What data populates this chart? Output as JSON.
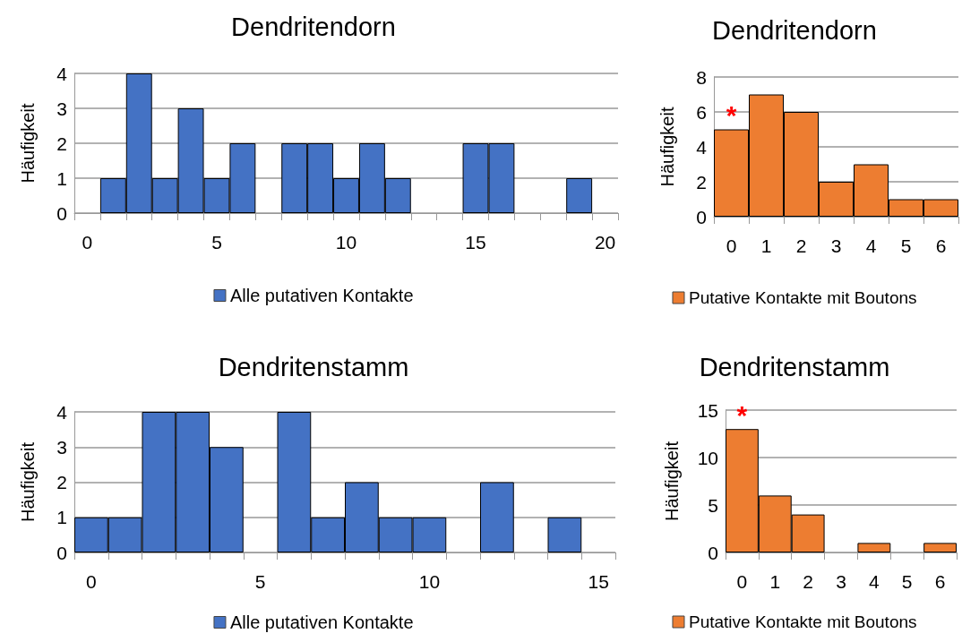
{
  "chart_data": [
    {
      "type": "bar",
      "title": "Dendritendorn",
      "ylabel": "Häufigkeit",
      "categories": [
        "0",
        null,
        null,
        null,
        null,
        "5",
        null,
        null,
        null,
        null,
        "10",
        null,
        null,
        null,
        null,
        "15",
        null,
        null,
        null,
        null,
        "20"
      ],
      "series": [
        {
          "name": "Alle putativen Kontakte",
          "color": "#4472c4",
          "values": [
            0,
            1,
            4,
            1,
            3,
            1,
            2,
            0,
            2,
            2,
            1,
            2,
            1,
            0,
            0,
            2,
            2,
            0,
            0,
            1,
            0
          ]
        }
      ],
      "ylim": [
        0,
        4
      ],
      "yticks": [
        0,
        1,
        2,
        3,
        4
      ],
      "grid": "y",
      "legend": "bottom"
    },
    {
      "type": "bar",
      "title": "Dendritendorn",
      "ylabel": "Häufigkeit",
      "categories": [
        "0",
        "1",
        "2",
        "3",
        "4",
        "5",
        "6"
      ],
      "series": [
        {
          "name": "Putative Kontakte mit Boutons",
          "color": "#ed7d31",
          "values": [
            5,
            7,
            6,
            2,
            3,
            1,
            1
          ]
        }
      ],
      "ylim": [
        0,
        8
      ],
      "yticks": [
        0,
        2,
        4,
        6,
        8
      ],
      "grid": "y",
      "legend": "bottom",
      "annotations": [
        {
          "text": "*",
          "x": "0",
          "y": 5
        }
      ]
    },
    {
      "type": "bar",
      "title": "Dendritenstamm",
      "ylabel": "Häufigkeit",
      "categories": [
        "0",
        null,
        null,
        null,
        null,
        "5",
        null,
        null,
        null,
        null,
        "10",
        null,
        null,
        null,
        null,
        "15"
      ],
      "series": [
        {
          "name": "Alle putativen Kontakte",
          "color": "#4472c4",
          "values": [
            1,
            1,
            4,
            4,
            3,
            0,
            4,
            1,
            2,
            1,
            1,
            0,
            2,
            0,
            1,
            0
          ]
        }
      ],
      "ylim": [
        0,
        4
      ],
      "yticks": [
        0,
        1,
        2,
        3,
        4
      ],
      "grid": "y",
      "legend": "bottom"
    },
    {
      "type": "bar",
      "title": "Dendritenstamm",
      "ylabel": "Häufigkeit",
      "categories": [
        "0",
        "1",
        "2",
        "3",
        "4",
        "5",
        "6"
      ],
      "series": [
        {
          "name": "Putative Kontakte mit Boutons",
          "color": "#ed7d31",
          "values": [
            13,
            6,
            4,
            0,
            1,
            0,
            1
          ]
        }
      ],
      "ylim": [
        0,
        15
      ],
      "yticks": [
        0,
        5,
        10,
        15
      ],
      "grid": "y",
      "legend": "bottom",
      "annotations": [
        {
          "text": "*",
          "x": "0",
          "y": 13
        }
      ]
    }
  ]
}
